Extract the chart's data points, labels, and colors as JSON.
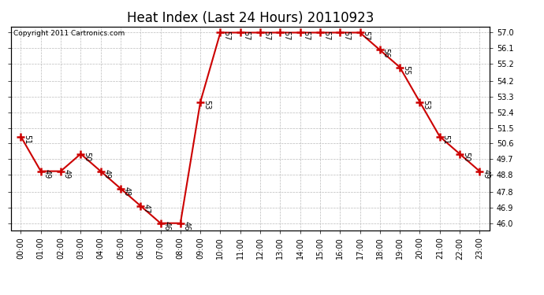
{
  "title": "Heat Index (Last 24 Hours) 20110923",
  "copyright": "Copyright 2011 Cartronics.com",
  "x_labels": [
    "00:00",
    "01:00",
    "02:00",
    "03:00",
    "04:00",
    "05:00",
    "06:00",
    "07:00",
    "08:00",
    "09:00",
    "10:00",
    "11:00",
    "12:00",
    "13:00",
    "14:00",
    "15:00",
    "16:00",
    "17:00",
    "18:00",
    "19:00",
    "20:00",
    "21:00",
    "22:00",
    "23:00"
  ],
  "y_values": [
    51,
    49,
    49,
    50,
    49,
    48,
    47,
    46,
    46,
    53,
    57,
    57,
    57,
    57,
    57,
    57,
    57,
    57,
    56,
    55,
    53,
    51,
    50,
    49
  ],
  "y_labels": [
    "46.0",
    "46.9",
    "47.8",
    "48.8",
    "49.7",
    "50.6",
    "51.5",
    "52.4",
    "53.3",
    "54.2",
    "55.2",
    "56.1",
    "57.0"
  ],
  "y_ticks": [
    46.0,
    46.9,
    47.8,
    48.8,
    49.7,
    50.6,
    51.5,
    52.4,
    53.3,
    54.2,
    55.2,
    56.1,
    57.0
  ],
  "ylim": [
    45.6,
    57.35
  ],
  "xlim": [
    -0.5,
    23.5
  ],
  "line_color": "#cc0000",
  "marker": "+",
  "marker_size": 7,
  "marker_color": "#cc0000",
  "background_color": "#ffffff",
  "grid_color": "#bbbbbb",
  "title_fontsize": 12,
  "tick_fontsize": 7,
  "annotation_fontsize": 7,
  "copyright_fontsize": 6.5
}
